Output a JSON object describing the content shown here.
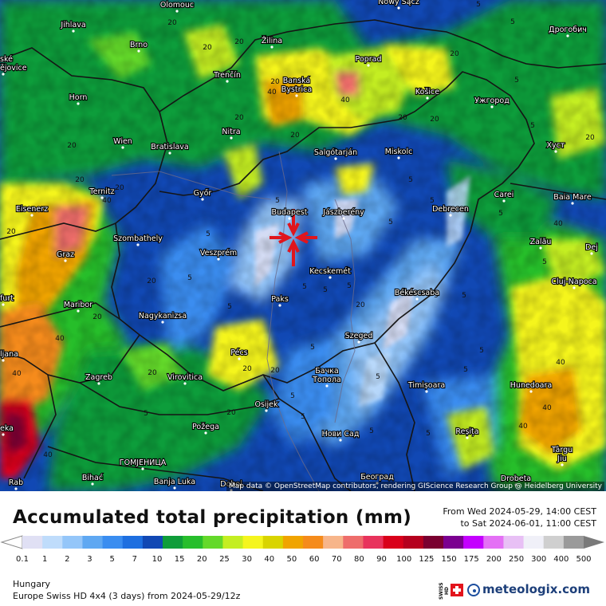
{
  "map": {
    "attribution": "Map data © OpenStreetMap contributors, rendering GIScience Research Group @ Heidelberg University",
    "cities": [
      {
        "name": "Olomouc"
      },
      {
        "name": "Nowy Sącz"
      },
      {
        "name": "Дрогобич"
      },
      {
        "name": "Jihlava"
      },
      {
        "name": "Brno"
      },
      {
        "name": "Žilina"
      },
      {
        "name": "Poprad"
      },
      {
        "name": "ské\nějovice"
      },
      {
        "name": "Trenčín"
      },
      {
        "name": "Banská\nBystrica"
      },
      {
        "name": "Košice"
      },
      {
        "name": "Ужгород"
      },
      {
        "name": "Horn"
      },
      {
        "name": "Nitra"
      },
      {
        "name": "Хуст"
      },
      {
        "name": "Wien"
      },
      {
        "name": "Bratislava"
      },
      {
        "name": "Salgótarján"
      },
      {
        "name": "Miskolc"
      },
      {
        "name": "Ternitz"
      },
      {
        "name": "Győr"
      },
      {
        "name": "Carei"
      },
      {
        "name": "Baia Mare"
      },
      {
        "name": "Eisenerz"
      },
      {
        "name": "Budapest"
      },
      {
        "name": "Jászberény"
      },
      {
        "name": "Debrecen"
      },
      {
        "name": "Szombathely"
      },
      {
        "name": "Zalău"
      },
      {
        "name": "Graz"
      },
      {
        "name": "Veszprém"
      },
      {
        "name": "Kecskemét"
      },
      {
        "name": "Dej"
      },
      {
        "name": "Cluj-Napoca"
      },
      {
        "name": "furt"
      },
      {
        "name": "Maribor"
      },
      {
        "name": "Paks"
      },
      {
        "name": "Békéscsaba"
      },
      {
        "name": "Nagykanizsa"
      },
      {
        "name": "Szeged"
      },
      {
        "name": "ljana"
      },
      {
        "name": "Pécs"
      },
      {
        "name": "Бачка\nТопола"
      },
      {
        "name": "Zagreb"
      },
      {
        "name": "Virovitica"
      },
      {
        "name": "Timișoara"
      },
      {
        "name": "Hunedoara"
      },
      {
        "name": "Osijek"
      },
      {
        "name": "Požega"
      },
      {
        "name": "Нови Сад"
      },
      {
        "name": "Reșița"
      },
      {
        "name": "eka"
      },
      {
        "name": "ГОМЈЕНИЦА"
      },
      {
        "name": "Târgu\nJiu"
      },
      {
        "name": "Bihać"
      },
      {
        "name": "Banja Luka"
      },
      {
        "name": "Београд"
      },
      {
        "name": "Drobeta"
      },
      {
        "name": "Rab"
      },
      {
        "name": "Doboj"
      }
    ],
    "contour_labels": [
      "20",
      "20",
      "20",
      "20",
      "20",
      "20",
      "20",
      "20",
      "20",
      "20",
      "20",
      "20",
      "20",
      "20",
      "20",
      "20",
      "20",
      "20",
      "20",
      "20",
      "20",
      "40",
      "40",
      "40",
      "40",
      "40",
      "40",
      "40",
      "40",
      "40",
      "40",
      "5",
      "5",
      "5",
      "5",
      "5",
      "5",
      "5",
      "5",
      "5",
      "5",
      "5",
      "5",
      "5",
      "5",
      "5",
      "5",
      "5",
      "5",
      "5",
      "5",
      "5",
      "5",
      "5",
      "5",
      "5",
      "5",
      "5",
      "5"
    ],
    "marker": "location-crosshair"
  },
  "legend": {
    "title": "Accumulated total precipitation (mm)",
    "period_from": "From Wed 2024-05-29, 14:00 CEST",
    "period_to": "to Sat 2024-06-01, 11:00 CEST",
    "colorbar_ticks": [
      "0.1",
      "1",
      "2",
      "3",
      "5",
      "7",
      "10",
      "15",
      "20",
      "25",
      "30",
      "40",
      "50",
      "60",
      "70",
      "80",
      "90",
      "100",
      "125",
      "150",
      "175",
      "200",
      "250",
      "300",
      "400",
      "500"
    ],
    "colorbar_colors": [
      "#e0e0f4",
      "#bfdcfb",
      "#94c6f9",
      "#5fa8f2",
      "#3a8df0",
      "#1e6fe0",
      "#1148b4",
      "#0f9d3a",
      "#27be2c",
      "#64d92a",
      "#c4ee22",
      "#f5f51e",
      "#d9d400",
      "#f0a400",
      "#f58b1b",
      "#f7b58a",
      "#ee6d6b",
      "#e8335c",
      "#d9001a",
      "#b5001e",
      "#7a0030",
      "#7b0090",
      "#c400ff",
      "#e470f5",
      "#e8c0f5",
      "#f0f0f8",
      "#cfcfcf",
      "#9a9a9a"
    ],
    "region": "Hungary",
    "model": "Europe Swiss HD 4x4 (3 days) from 2024-05-29/12z",
    "swiss_badge": "SWISS HD",
    "brand": "meteologix.com"
  }
}
